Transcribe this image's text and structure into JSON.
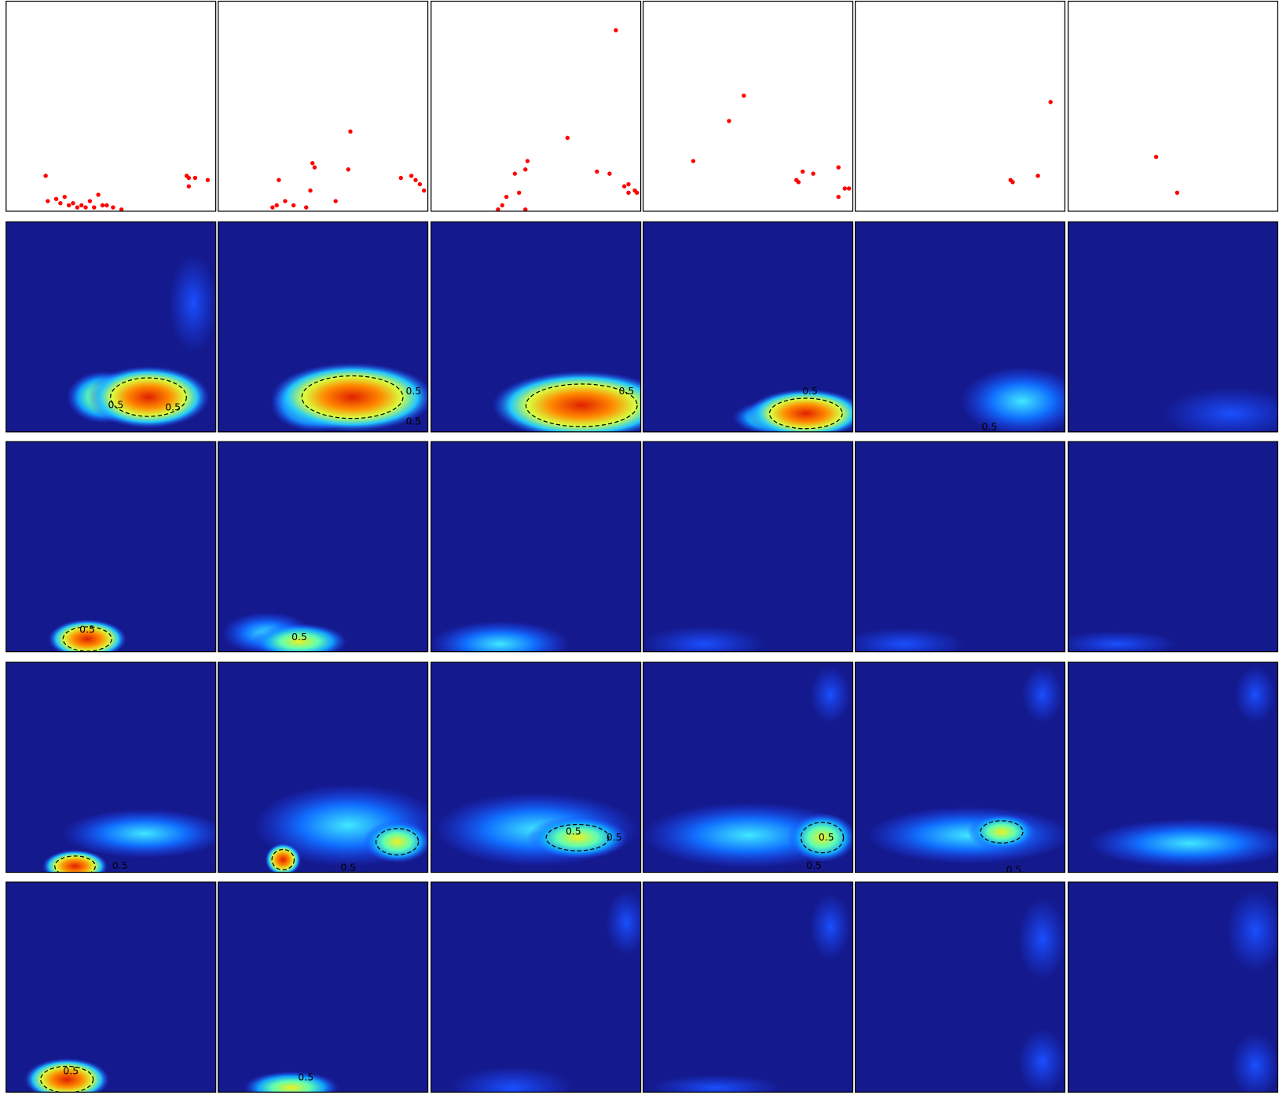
{
  "chart_data": [
    {
      "type": "scatter",
      "color": "#ff0000",
      "x": [
        0.19,
        0.2,
        0.24,
        0.28,
        0.32,
        0.36,
        0.4,
        0.44,
        0.48,
        0.34,
        0.3,
        0.26,
        0.38,
        0.42,
        0.46,
        0.51,
        0.55,
        0.86,
        0.87,
        0.9,
        0.96,
        0.87
      ],
      "y": [
        0.17,
        0.05,
        0.06,
        0.07,
        0.04,
        0.03,
        0.05,
        0.08,
        0.03,
        0.02,
        0.03,
        0.04,
        0.02,
        0.02,
        0.03,
        0.02,
        0.01,
        0.17,
        0.16,
        0.16,
        0.15,
        0.12
      ]
    },
    {
      "type": "scatter",
      "color": "#ff0000",
      "x": [
        0.63,
        0.45,
        0.46,
        0.62,
        0.29,
        0.44,
        0.56,
        0.32,
        0.28,
        0.36,
        0.42,
        0.26,
        0.92,
        0.94,
        0.96,
        0.98,
        0.87
      ],
      "y": [
        0.38,
        0.23,
        0.21,
        0.2,
        0.15,
        0.1,
        0.05,
        0.05,
        0.03,
        0.03,
        0.02,
        0.02,
        0.17,
        0.15,
        0.13,
        0.1,
        0.16
      ]
    },
    {
      "type": "scatter",
      "color": "#ff0000",
      "x": [
        0.88,
        0.65,
        0.46,
        0.45,
        0.4,
        0.79,
        0.85,
        0.42,
        0.36,
        0.34,
        0.32,
        0.45,
        0.92,
        0.94,
        0.97,
        0.94,
        0.98
      ],
      "y": [
        0.86,
        0.35,
        0.24,
        0.2,
        0.18,
        0.19,
        0.18,
        0.09,
        0.07,
        0.03,
        0.01,
        0.01,
        0.12,
        0.13,
        0.1,
        0.09,
        0.09
      ]
    },
    {
      "type": "scatter",
      "color": "#ff0000",
      "x": [
        0.48,
        0.41,
        0.24,
        0.76,
        0.81,
        0.93,
        0.73,
        0.74,
        0.96,
        0.98,
        0.93
      ],
      "y": [
        0.55,
        0.43,
        0.24,
        0.19,
        0.18,
        0.21,
        0.15,
        0.14,
        0.11,
        0.11,
        0.07
      ]
    },
    {
      "type": "scatter",
      "color": "#ff0000",
      "x": [
        0.93,
        0.87,
        0.74,
        0.75
      ],
      "y": [
        0.52,
        0.17,
        0.15,
        0.14
      ]
    },
    {
      "type": "scatter",
      "color": "#ff0000",
      "x": [
        0.42,
        0.52
      ],
      "y": [
        0.26,
        0.09
      ]
    }
  ],
  "heatmaps": [
    [
      [
        "0.5",
        "0.5"
      ],
      [
        "0.5",
        "0.5"
      ],
      [
        "0.5"
      ],
      [
        "0.5"
      ],
      [
        "0.5"
      ],
      []
    ],
    [
      [
        "0.5"
      ],
      [
        "0.5"
      ],
      [],
      [],
      [],
      []
    ],
    [
      [
        "0.5"
      ],
      [
        "0.5"
      ],
      [
        "0.5",
        "0.5"
      ],
      [
        "0.5",
        "0.5"
      ],
      [
        "0.5"
      ],
      []
    ],
    [
      [
        "0.5"
      ],
      [
        "0.5"
      ],
      [],
      [],
      [],
      []
    ]
  ]
}
